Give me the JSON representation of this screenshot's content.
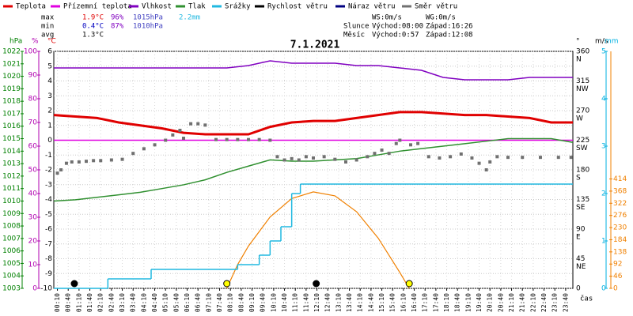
{
  "chart_data": {
    "type": "line",
    "title": "7.1.2021",
    "xlim": [
      0,
      1440
    ],
    "x_label": "čas",
    "xticks": [
      {
        "value": 10,
        "label": "00:10"
      },
      {
        "value": 40,
        "label": "00:40"
      },
      {
        "value": 70,
        "label": "01:10"
      },
      {
        "value": 100,
        "label": "01:40"
      },
      {
        "value": 130,
        "label": "02:10"
      },
      {
        "value": 160,
        "label": "02:40"
      },
      {
        "value": 190,
        "label": "03:10"
      },
      {
        "value": 220,
        "label": "03:40"
      },
      {
        "value": 250,
        "label": "04:10"
      },
      {
        "value": 280,
        "label": "04:40"
      },
      {
        "value": 310,
        "label": "05:10"
      },
      {
        "value": 340,
        "label": "05:40"
      },
      {
        "value": 370,
        "label": "06:10"
      },
      {
        "value": 400,
        "label": "06:40"
      },
      {
        "value": 430,
        "label": "07:10"
      },
      {
        "value": 460,
        "label": "07:40"
      },
      {
        "value": 490,
        "label": "08:10"
      },
      {
        "value": 520,
        "label": "08:40"
      },
      {
        "value": 550,
        "label": "09:10"
      },
      {
        "value": 580,
        "label": "09:40"
      },
      {
        "value": 610,
        "label": "10:10"
      },
      {
        "value": 640,
        "label": "10:40"
      },
      {
        "value": 670,
        "label": "11:10"
      },
      {
        "value": 700,
        "label": "11:40"
      },
      {
        "value": 730,
        "label": "12:10"
      },
      {
        "value": 760,
        "label": "12:40"
      },
      {
        "value": 790,
        "label": "13:10"
      },
      {
        "value": 820,
        "label": "13:40"
      },
      {
        "value": 850,
        "label": "14:10"
      },
      {
        "value": 880,
        "label": "14:40"
      },
      {
        "value": 910,
        "label": "15:10"
      },
      {
        "value": 940,
        "label": "15:40"
      },
      {
        "value": 970,
        "label": "16:10"
      },
      {
        "value": 1000,
        "label": "16:40"
      },
      {
        "value": 1030,
        "label": "17:10"
      },
      {
        "value": 1060,
        "label": "17:40"
      },
      {
        "value": 1090,
        "label": "18:10"
      },
      {
        "value": 1120,
        "label": "18:40"
      },
      {
        "value": 1150,
        "label": "19:10"
      },
      {
        "value": 1180,
        "label": "19:40"
      },
      {
        "value": 1210,
        "label": "20:10"
      },
      {
        "value": 1240,
        "label": "20:40"
      },
      {
        "value": 1270,
        "label": "21:10"
      },
      {
        "value": 1300,
        "label": "21:40"
      },
      {
        "value": 1330,
        "label": "22:10"
      },
      {
        "value": 1360,
        "label": "22:40"
      },
      {
        "value": 1390,
        "label": "23:10"
      },
      {
        "value": 1420,
        "label": "23:40"
      }
    ],
    "grid": true,
    "axes": {
      "press": {
        "label": "hPa",
        "color": "#008000",
        "lim": [
          1003,
          1022
        ],
        "ticks": [
          1003,
          1004,
          1005,
          1006,
          1007,
          1008,
          1009,
          1010,
          1011,
          1012,
          1013,
          1014,
          1015,
          1016,
          1017,
          1018,
          1019,
          1020,
          1021,
          1022
        ]
      },
      "hum": {
        "label": "%",
        "color": "#b000b0",
        "lim": [
          0,
          100
        ],
        "ticks": [
          0,
          10,
          20,
          30,
          40,
          50,
          60,
          70,
          80,
          90,
          100
        ]
      },
      "temp": {
        "label": "°C",
        "color": "#e00000",
        "lim": [
          -10,
          6
        ],
        "ticks": [
          -10,
          -9,
          -8,
          -7,
          -6,
          -5,
          -4,
          -3,
          -2,
          -1,
          0,
          1,
          2,
          3,
          4,
          5,
          6
        ]
      },
      "dir": {
        "label": "°",
        "color": "#000000",
        "lim": [
          0,
          360
        ],
        "ticks": [
          0,
          45,
          90,
          135,
          180,
          225,
          270,
          315,
          360
        ],
        "tick_names": [
          null,
          "NE",
          "E",
          "SE",
          "S",
          "SW",
          "W",
          "NW",
          "N"
        ]
      },
      "wind": {
        "label": "m/s",
        "color": "#000000",
        "lim": [
          0,
          5
        ]
      },
      "rain": {
        "label": "mm",
        "color": "#00b0e0",
        "lim": [
          0,
          5
        ],
        "ticks": [
          0,
          1,
          2,
          3,
          4,
          5
        ]
      },
      "solar": {
        "color": "#f08000",
        "lim": [
          0,
          897
        ],
        "ticks": [
          0,
          46,
          92,
          138,
          184,
          230,
          276,
          322,
          368,
          414
        ]
      }
    },
    "series": [
      {
        "name": "Teplota",
        "color": "#e00000",
        "axis": "temp",
        "style": "line",
        "x": [
          0,
          60,
          120,
          180,
          240,
          300,
          360,
          420,
          480,
          540,
          600,
          660,
          720,
          780,
          840,
          900,
          960,
          1020,
          1080,
          1140,
          1200,
          1260,
          1320,
          1380,
          1440
        ],
        "values": [
          1.7,
          1.6,
          1.5,
          1.2,
          1.0,
          0.8,
          0.5,
          0.4,
          0.4,
          0.4,
          0.9,
          1.2,
          1.3,
          1.3,
          1.5,
          1.7,
          1.9,
          1.9,
          1.8,
          1.7,
          1.7,
          1.6,
          1.5,
          1.2,
          1.2
        ]
      },
      {
        "name": "Přízemní teplota",
        "color": "#e000e0",
        "axis": "temp",
        "style": "line",
        "x": [
          0,
          1440
        ],
        "values": [
          0,
          0
        ]
      },
      {
        "name": "Vlhkost",
        "color": "#8000c0",
        "axis": "hum",
        "style": "line",
        "x": [
          0,
          60,
          120,
          180,
          240,
          300,
          360,
          420,
          480,
          540,
          600,
          660,
          720,
          780,
          840,
          900,
          960,
          1020,
          1080,
          1140,
          1200,
          1260,
          1320,
          1380,
          1440
        ],
        "values": [
          93,
          93,
          93,
          93,
          93,
          93,
          93,
          93,
          93,
          94,
          96,
          95,
          95,
          95,
          94,
          94,
          93,
          92,
          89,
          88,
          88,
          88,
          89,
          89,
          89
        ]
      },
      {
        "name": "Tlak",
        "color": "#309030",
        "axis": "press",
        "style": "line",
        "x": [
          0,
          60,
          120,
          180,
          240,
          300,
          360,
          420,
          480,
          540,
          600,
          660,
          720,
          780,
          840,
          900,
          960,
          1020,
          1080,
          1140,
          1200,
          1260,
          1320,
          1380,
          1440
        ],
        "values": [
          1010,
          1010.1,
          1010.3,
          1010.5,
          1010.7,
          1011,
          1011.3,
          1011.7,
          1012.3,
          1012.8,
          1013.3,
          1013.2,
          1013.2,
          1013.3,
          1013.4,
          1013.7,
          1014,
          1014.2,
          1014.4,
          1014.6,
          1014.8,
          1015,
          1015,
          1015,
          1014.7
        ]
      },
      {
        "name": "Srážky",
        "color": "#20b8e0",
        "axis": "rain",
        "style": "step",
        "x": [
          0,
          150,
          270,
          510,
          570,
          600,
          630,
          660,
          684
        ],
        "values": [
          0,
          0.2,
          0.4,
          0.5,
          0.7,
          1.0,
          1.3,
          2.0,
          2.2
        ]
      },
      {
        "name": "Rychlost větru",
        "color": "#000000",
        "axis": "wind",
        "style": "line",
        "x": [],
        "values": []
      },
      {
        "name": "Náraz větru",
        "color": "#000080",
        "axis": "wind",
        "style": "line",
        "x": [],
        "values": []
      },
      {
        "name": "Směr větru",
        "color": "#707070",
        "axis": "dir",
        "style": "points",
        "x": [
          10,
          20,
          35,
          50,
          70,
          90,
          110,
          130,
          160,
          190,
          220,
          250,
          280,
          310,
          330,
          350,
          360,
          380,
          400,
          420,
          450,
          480,
          510,
          540,
          570,
          600,
          620,
          640,
          660,
          680,
          700,
          720,
          750,
          780,
          810,
          840,
          870,
          890,
          910,
          930,
          950,
          960,
          990,
          1010,
          1040,
          1070,
          1100,
          1130,
          1160,
          1180,
          1200,
          1210,
          1230,
          1260,
          1300,
          1350,
          1400,
          1435
        ],
        "values": [
          175,
          180,
          190,
          192,
          192,
          193,
          194,
          194,
          195,
          196,
          205,
          212,
          218,
          225,
          233,
          240,
          228,
          250,
          250,
          248,
          226,
          226,
          226,
          226,
          226,
          225,
          200,
          195,
          197,
          195,
          200,
          198,
          200,
          196,
          192,
          195,
          200,
          205,
          210,
          205,
          220,
          225,
          218,
          220,
          200,
          198,
          200,
          204,
          198,
          190,
          180,
          192,
          200,
          199,
          199,
          199,
          199,
          199
        ]
      }
    ],
    "solar": {
      "color": "#f08000",
      "axis": "solar",
      "x": [
        480,
        510,
        540,
        600,
        660,
        720,
        780,
        840,
        900,
        960,
        986
      ],
      "values": [
        0,
        90,
        160,
        270,
        340,
        365,
        350,
        290,
        190,
        60,
        0
      ]
    },
    "sun_markers_x": [
      480,
      986
    ],
    "moon_markers_x": [
      57,
      728
    ],
    "stats": {
      "labels": [
        "max",
        "min",
        "avg"
      ],
      "temperature": [
        "1.9°C",
        "0.4°C",
        "1.3°C"
      ],
      "humidity": [
        "96%",
        "87%"
      ],
      "pressure": [
        "1015hPa",
        "1010hPa"
      ],
      "rain": [
        "2.2mm"
      ]
    },
    "astro": {
      "ws": "WS:0m/s",
      "wg": "WG:0m/s",
      "sun": "Slunce",
      "sunrise": "Východ:08:00",
      "sunset": "Západ:16:26",
      "moon": "Měsíc",
      "moonrise": "Východ:0:57",
      "moonset": "Západ:12:08"
    }
  }
}
